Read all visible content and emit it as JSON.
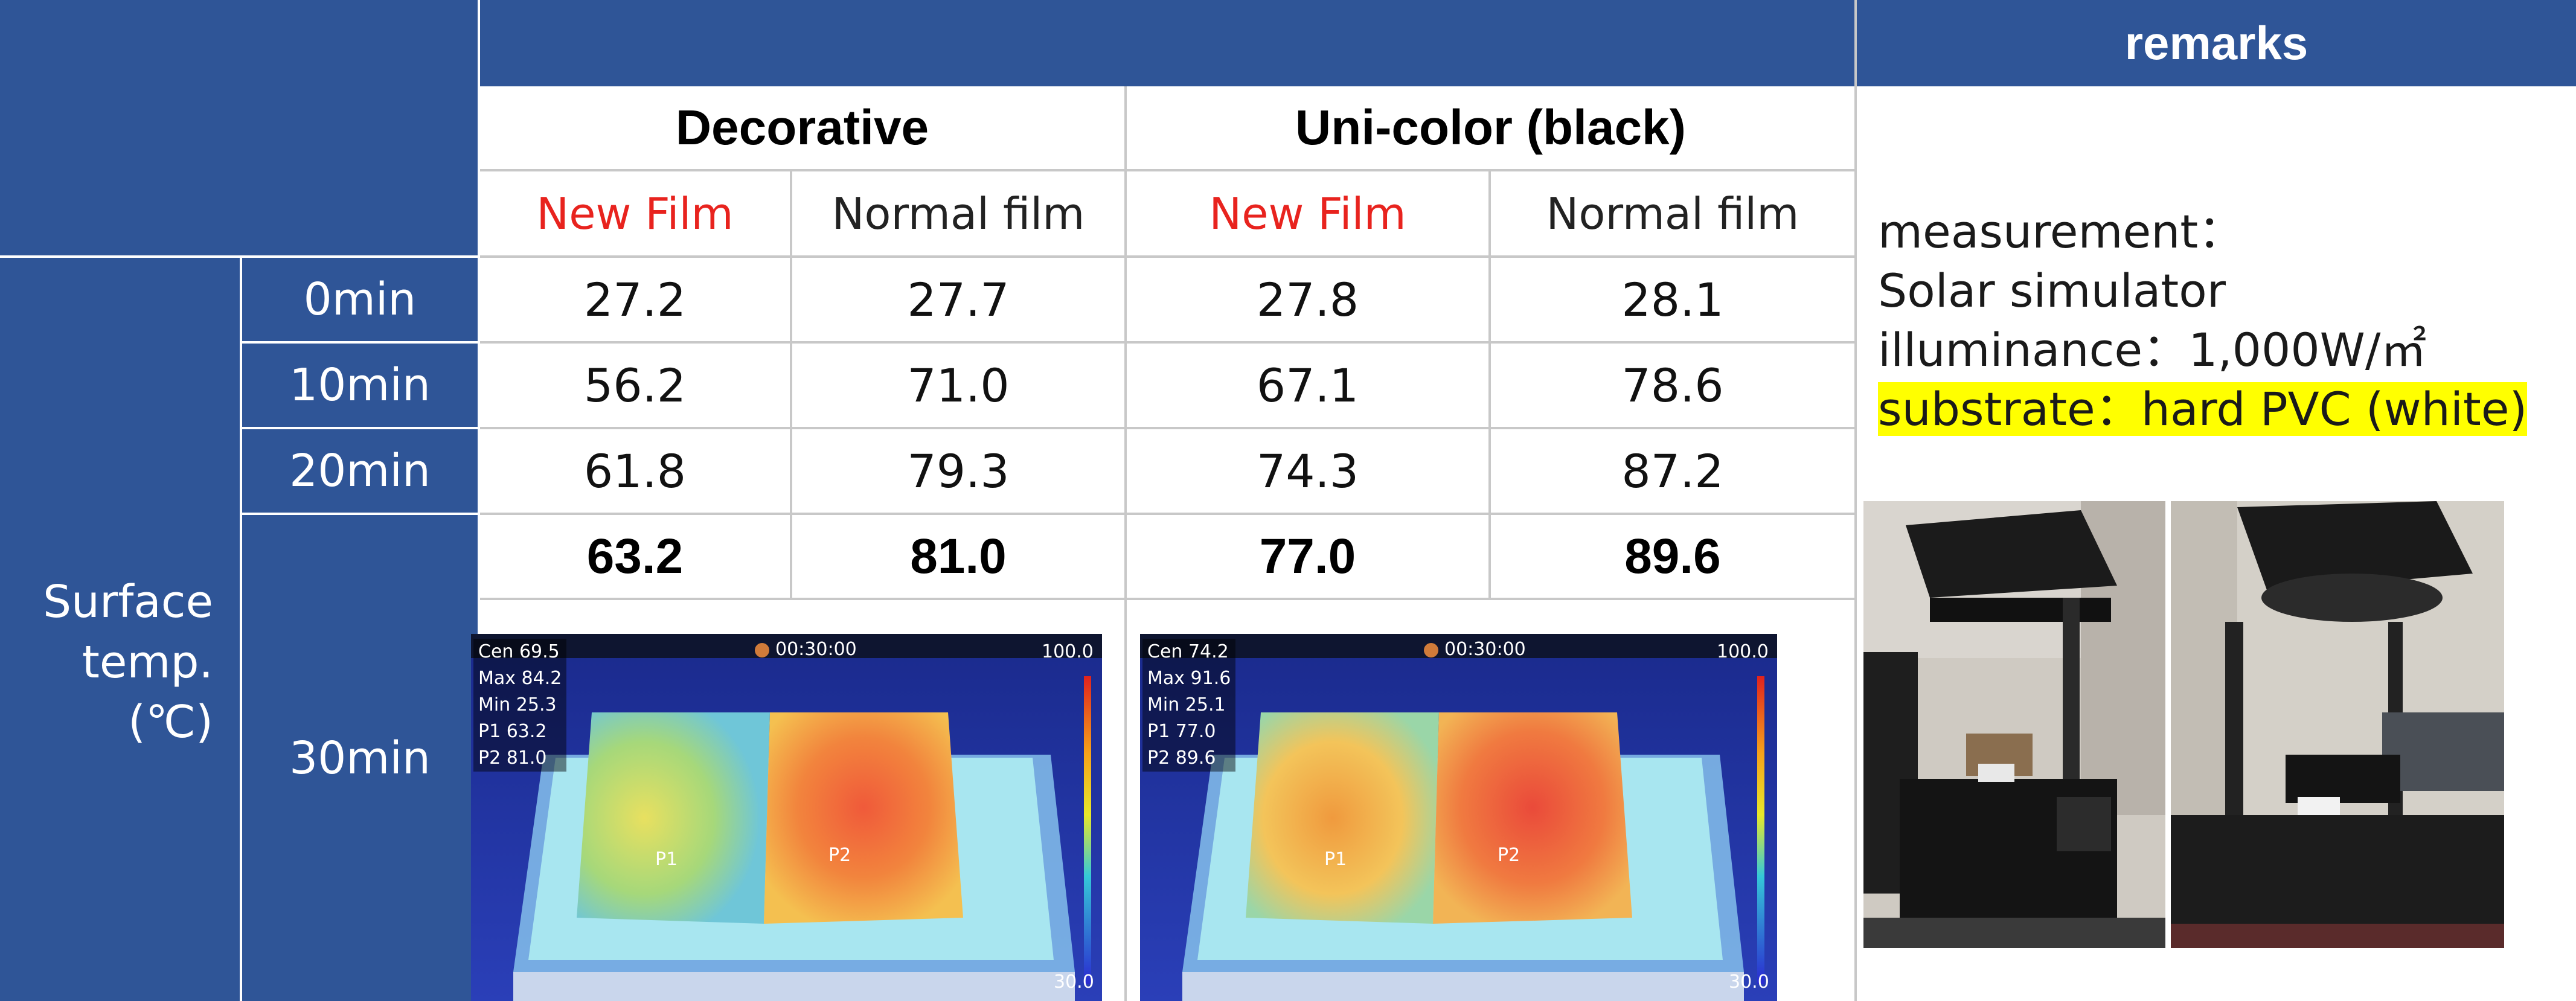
{
  "header": {
    "remarks_label": "remarks"
  },
  "groups": [
    {
      "label": "Decorative",
      "sub": {
        "new": "New Film",
        "normal": "Normal film"
      }
    },
    {
      "label": "Uni-color (black)",
      "sub": {
        "new": "New Film",
        "normal": "Normal film"
      }
    }
  ],
  "row_group_label": "Surface\ntemp.\n(℃)",
  "rows": [
    {
      "time": "0min",
      "values": [
        "27.2",
        "27.7",
        "27.8",
        "28.1"
      ]
    },
    {
      "time": "10min",
      "values": [
        "56.2",
        "71.0",
        "67.1",
        "78.6"
      ]
    },
    {
      "time": "20min",
      "values": [
        "61.8",
        "79.3",
        "74.3",
        "87.2"
      ]
    },
    {
      "time": "30min",
      "values": [
        "63.2",
        "81.0",
        "77.0",
        "89.6"
      ]
    }
  ],
  "remarks": {
    "line1": "measurement：",
    "line2": "Solar simulator",
    "line3": "illuminance：1,000W/㎡",
    "line4": "substrate：hard PVC (white)"
  },
  "thermal_images": [
    {
      "cen": "Cen  69.5",
      "max": "Max  84.2",
      "min": "Min  25.3",
      "p1": "P1  63.2",
      "p2": "P2  81.0",
      "timer": "00:30:00",
      "scale_top": "100.0",
      "scale_bottom": "30.0",
      "marker1": "P1",
      "marker2": "P2"
    },
    {
      "cen": "Cen  74.2",
      "max": "Max  91.6",
      "min": "Min  25.1",
      "p1": "P1  77.0",
      "p2": "P2  89.6",
      "timer": "00:30:00",
      "scale_top": "100.0",
      "scale_bottom": "30.0",
      "marker1": "P1",
      "marker2": "P2"
    }
  ],
  "colors": {
    "header_blue": "#2f5597",
    "new_film_red": "#e8231e",
    "highlight": "#ffff00"
  }
}
